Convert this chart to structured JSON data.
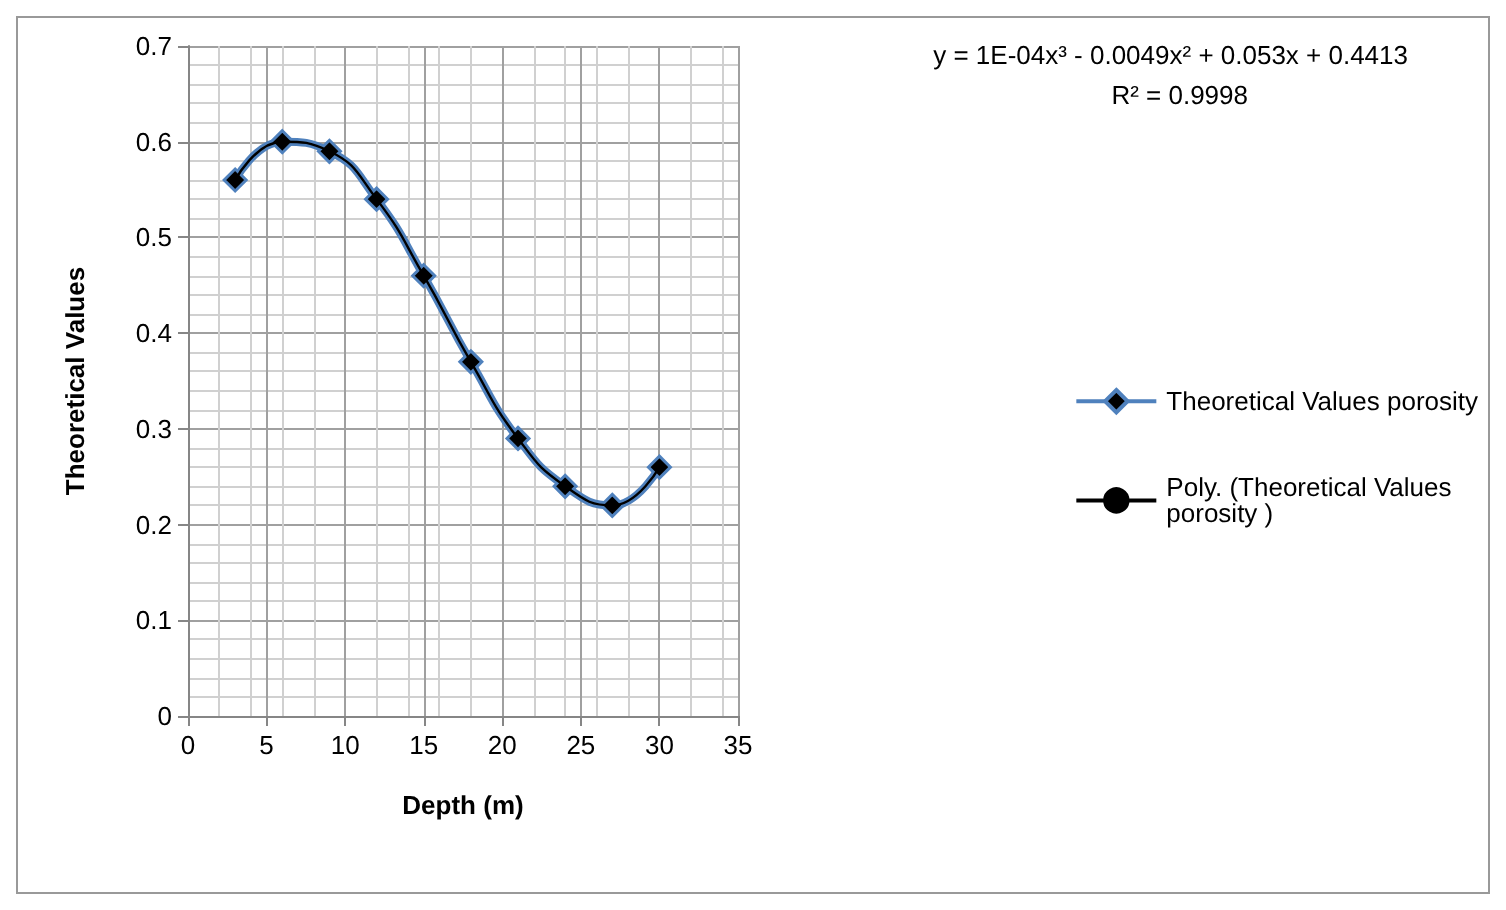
{
  "chart_data": {
    "type": "line",
    "xlabel": "Depth (m)",
    "ylabel": "Theoretical Values",
    "xlim": [
      0,
      35
    ],
    "xticks": [
      0,
      5,
      10,
      15,
      20,
      25,
      30,
      35
    ],
    "ylim": [
      0,
      0.7
    ],
    "yticks": [
      0,
      0.1,
      0.2,
      0.3,
      0.4,
      0.5,
      0.6,
      0.7
    ],
    "grid": true,
    "legend": "right",
    "annotations": [
      "y = 1E-04x³ - 0.0049x² + 0.053x + 0.4413",
      "R² = 0.9998"
    ],
    "series": [
      {
        "name": "Theoretical Values porosity",
        "color": "#4f81bd",
        "marker": "diamond",
        "x": [
          3,
          6,
          9,
          12,
          15,
          18,
          21,
          24,
          27,
          30
        ],
        "values": [
          0.56,
          0.6,
          0.59,
          0.54,
          0.46,
          0.37,
          0.29,
          0.24,
          0.22,
          0.26
        ]
      },
      {
        "name": "Poly. (Theoretical Values porosity )",
        "color": "#000000",
        "marker": "none",
        "x": [
          3,
          6,
          9,
          12,
          15,
          18,
          21,
          24,
          27,
          30
        ],
        "values": [
          0.56,
          0.6,
          0.59,
          0.54,
          0.46,
          0.37,
          0.29,
          0.24,
          0.22,
          0.26
        ]
      }
    ]
  }
}
